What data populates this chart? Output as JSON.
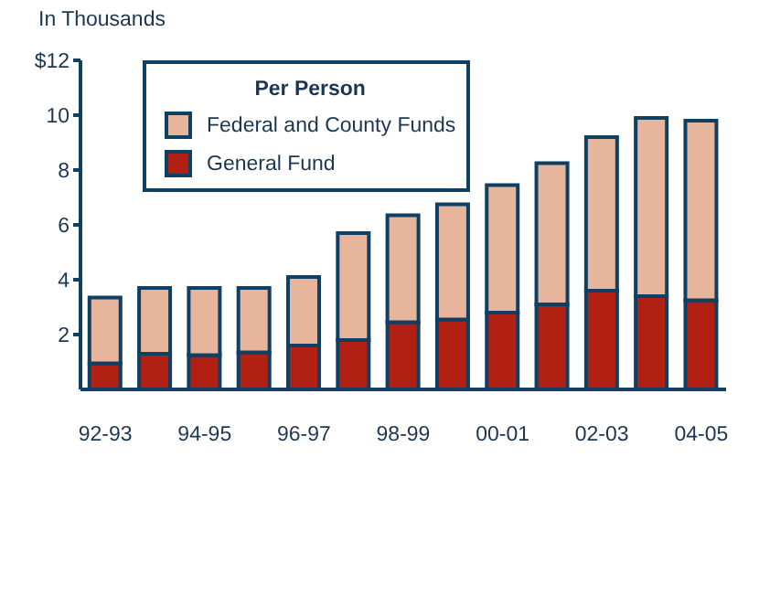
{
  "chart_data": {
    "type": "bar",
    "stacked": true,
    "ylabel": "In Thousands",
    "legend_title": "Per Person",
    "legend": "top left",
    "grid": false,
    "categories": [
      "92-93",
      null,
      "94-95",
      null,
      "96-97",
      null,
      "98-99",
      null,
      "00-01",
      null,
      "02-03",
      null,
      "04-05"
    ],
    "series": [
      {
        "name": "General Fund",
        "color": "#b22014",
        "values": [
          0.95,
          1.3,
          1.25,
          1.35,
          1.6,
          1.8,
          2.45,
          2.55,
          2.8,
          3.1,
          3.6,
          3.4,
          3.25
        ]
      },
      {
        "name": "Federal and County Funds",
        "color": "#e6b59c",
        "values": [
          2.4,
          2.4,
          2.45,
          2.35,
          2.5,
          3.9,
          3.9,
          4.2,
          4.65,
          5.15,
          5.6,
          6.5,
          6.55
        ]
      }
    ],
    "ylim": [
      0,
      12
    ],
    "yticks": [
      2,
      4,
      6,
      8,
      10,
      {
        "value": 12,
        "label": "$12"
      }
    ]
  }
}
